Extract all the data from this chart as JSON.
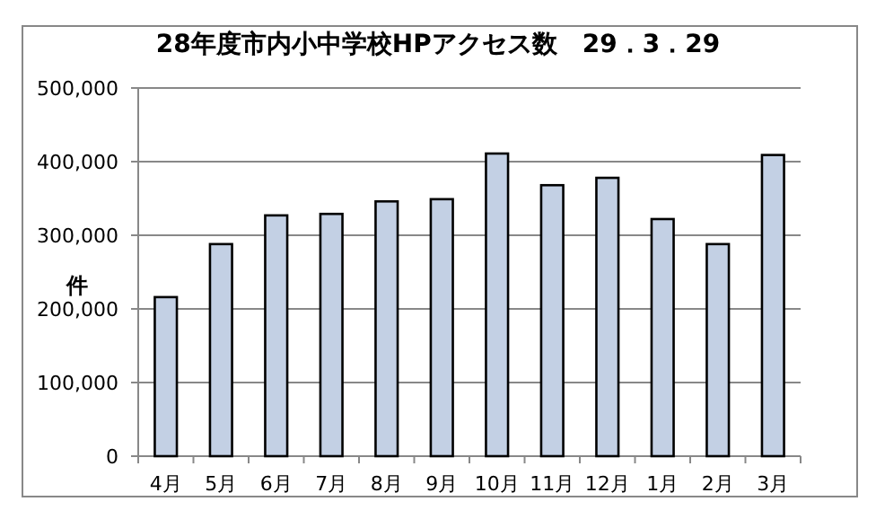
{
  "chart_data": {
    "type": "bar",
    "title": "28年度市内小中学校HPアクセス数　29．3．29",
    "ylabel": "件",
    "categories": [
      "4月",
      "5月",
      "6月",
      "7月",
      "8月",
      "9月",
      "10月",
      "11月",
      "12月",
      "1月",
      "2月",
      "3月"
    ],
    "values": [
      216000,
      288000,
      327000,
      329000,
      346000,
      349000,
      411000,
      368000,
      378000,
      322000,
      288000,
      409000
    ],
    "color": "#c3d0e4",
    "ylim": [
      0,
      500000
    ],
    "yticks": [
      {
        "value": 0,
        "label": "0"
      },
      {
        "value": 100000,
        "label": "100,000"
      },
      {
        "value": 200000,
        "label": "200,000"
      },
      {
        "value": 300000,
        "label": "300,000"
      },
      {
        "value": 400000,
        "label": "400,000"
      },
      {
        "value": 500000,
        "label": "500,000"
      }
    ],
    "grid": "y"
  }
}
